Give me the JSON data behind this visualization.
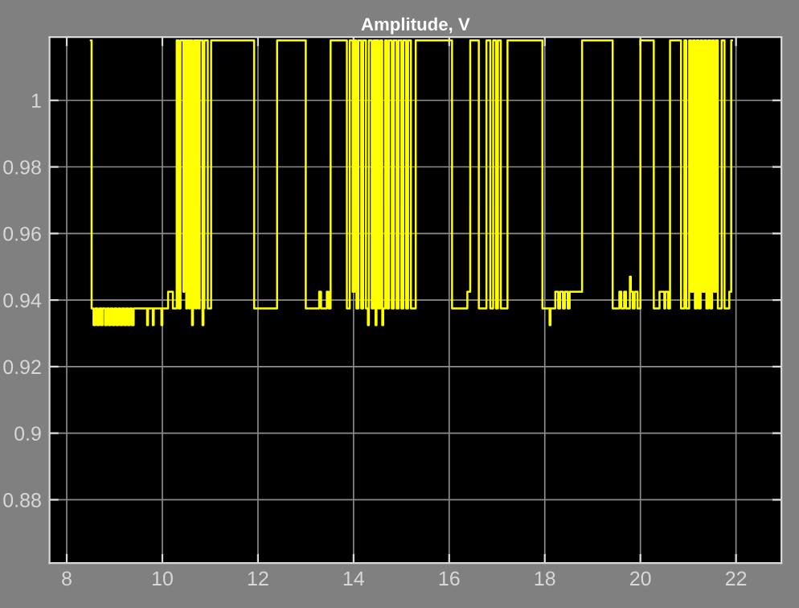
{
  "chart_data": {
    "type": "step",
    "title": "Amplitude, V",
    "xlim": [
      7.64,
      22.95
    ],
    "ylim": [
      0.861,
      1.019
    ],
    "xticks": [
      8,
      10,
      12,
      14,
      16,
      18,
      20,
      22
    ],
    "yticks": [
      0.88,
      0.9,
      0.92,
      0.94,
      0.96,
      0.98,
      1
    ],
    "grid": true,
    "tick_labels": true,
    "series": [
      {
        "color": "#ffff00",
        "x": [
          8.5,
          8.52,
          8.56,
          8.6,
          8.64,
          8.68,
          8.72,
          8.75,
          8.8,
          8.84,
          8.88,
          8.92,
          8.96,
          9.0,
          9.04,
          9.08,
          9.12,
          9.16,
          9.2,
          9.24,
          9.28,
          9.32,
          9.36,
          9.4,
          9.68,
          9.7,
          9.8,
          9.82,
          9.98,
          10.0,
          10.12,
          10.22,
          10.3,
          10.34,
          10.38,
          10.44,
          10.46,
          10.5,
          10.52,
          10.56,
          10.58,
          10.62,
          10.64,
          10.66,
          10.7,
          10.72,
          10.76,
          10.78,
          10.84,
          10.86,
          10.88,
          10.95,
          11.02,
          11.92,
          12.4,
          13.0,
          13.28,
          13.32,
          13.44,
          13.48,
          13.52,
          13.86,
          13.92,
          13.98,
          14.02,
          14.06,
          14.1,
          14.16,
          14.2,
          14.26,
          14.3,
          14.32,
          14.38,
          14.42,
          14.46,
          14.48,
          14.52,
          14.56,
          14.6,
          14.62,
          14.66,
          14.7,
          14.74,
          14.8,
          14.84,
          14.9,
          14.94,
          15.0,
          15.04,
          15.1,
          15.14,
          15.2,
          15.3,
          16.06,
          16.38,
          16.44,
          16.62,
          16.78,
          16.86,
          16.92,
          16.98,
          17.02,
          17.08,
          17.22,
          17.95,
          18.1,
          18.12,
          18.22,
          18.28,
          18.32,
          18.38,
          18.42,
          18.48,
          18.52,
          18.78,
          19.42,
          19.56,
          19.6,
          19.66,
          19.7,
          19.78,
          19.8,
          19.84,
          19.88,
          19.94,
          20.0,
          20.28,
          20.4,
          20.5,
          20.52,
          20.58,
          20.62,
          20.85,
          20.92,
          20.96,
          21.02,
          21.06,
          21.1,
          21.14,
          21.18,
          21.22,
          21.26,
          21.3,
          21.34,
          21.38,
          21.42,
          21.46,
          21.5,
          21.54,
          21.58,
          21.62,
          21.7,
          21.76,
          21.86,
          21.9,
          21.92
        ],
        "values": [
          1.018,
          0.9375,
          0.9325,
          0.9375,
          0.9325,
          0.9375,
          0.9325,
          0.9375,
          0.9325,
          0.9375,
          0.9325,
          0.9375,
          0.9325,
          0.9375,
          0.9325,
          0.9375,
          0.9325,
          0.9375,
          0.9325,
          0.9375,
          0.9325,
          0.9375,
          0.9325,
          0.9375,
          0.9325,
          0.9375,
          0.9325,
          0.9375,
          0.9325,
          0.9375,
          0.9425,
          0.9375,
          1.018,
          0.9375,
          1.018,
          0.9425,
          1.018,
          0.9375,
          1.018,
          0.9375,
          1.018,
          0.9325,
          0.9375,
          1.018,
          0.9375,
          1.018,
          0.9375,
          1.018,
          0.9325,
          0.9375,
          1.018,
          0.9375,
          1.018,
          0.9375,
          1.018,
          0.9375,
          0.9425,
          0.9375,
          0.9425,
          0.9375,
          1.018,
          0.9375,
          1.018,
          0.9425,
          1.018,
          0.9375,
          1.018,
          0.9375,
          1.018,
          0.9375,
          0.9325,
          1.018,
          0.9375,
          1.018,
          0.9325,
          1.018,
          0.9375,
          1.018,
          0.9325,
          0.9375,
          1.018,
          0.9375,
          1.018,
          0.9375,
          1.018,
          0.9375,
          1.018,
          0.9375,
          1.018,
          0.9375,
          1.018,
          0.9375,
          1.018,
          0.9375,
          0.9425,
          1.018,
          0.9375,
          1.018,
          0.9375,
          1.018,
          0.9375,
          1.018,
          0.9375,
          1.018,
          0.9375,
          0.9325,
          0.9375,
          0.9425,
          0.9375,
          0.9425,
          0.9375,
          0.9425,
          0.9375,
          0.9425,
          1.018,
          0.9375,
          0.9425,
          0.9375,
          0.9425,
          0.9375,
          0.947,
          0.9425,
          0.9375,
          0.9425,
          0.9375,
          1.018,
          0.9375,
          0.9425,
          0.9375,
          0.9425,
          0.9375,
          1.018,
          0.9375,
          1.018,
          0.9375,
          1.018,
          0.9425,
          1.018,
          0.9375,
          1.018,
          0.9375,
          1.018,
          0.9425,
          1.018,
          0.9375,
          1.018,
          0.9375,
          1.018,
          0.9425,
          1.018,
          0.9375,
          1.018,
          0.9375,
          0.9425,
          1.018,
          1.018
        ]
      }
    ]
  }
}
